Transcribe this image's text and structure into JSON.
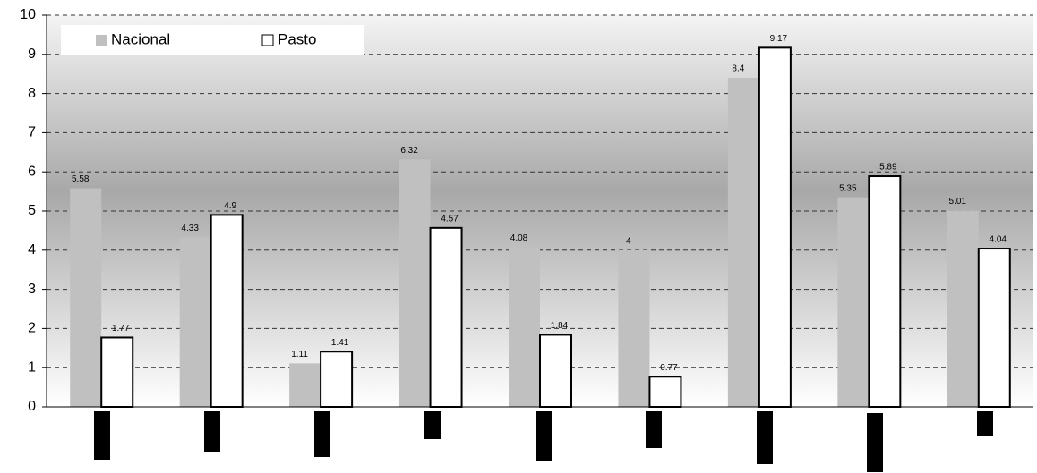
{
  "chart_data": {
    "type": "bar",
    "categories": [
      null,
      null,
      null,
      null,
      null,
      null,
      null,
      null,
      null
    ],
    "series": [
      {
        "name": "Nacional",
        "color": "#c0c0c0",
        "values": [
          5.58,
          4.33,
          1.11,
          6.32,
          4.08,
          4,
          8.4,
          5.35,
          5.01
        ]
      },
      {
        "name": "Pasto",
        "color": "#ffffff",
        "values": [
          1.77,
          4.9,
          1.41,
          4.57,
          1.84,
          0.77,
          9.17,
          5.89,
          4.04
        ]
      }
    ],
    "ylim": [
      0,
      10
    ],
    "yticks": [
      0,
      1,
      2,
      3,
      4,
      5,
      6,
      7,
      8,
      9,
      10
    ],
    "grid": true,
    "legend": "top-left"
  }
}
